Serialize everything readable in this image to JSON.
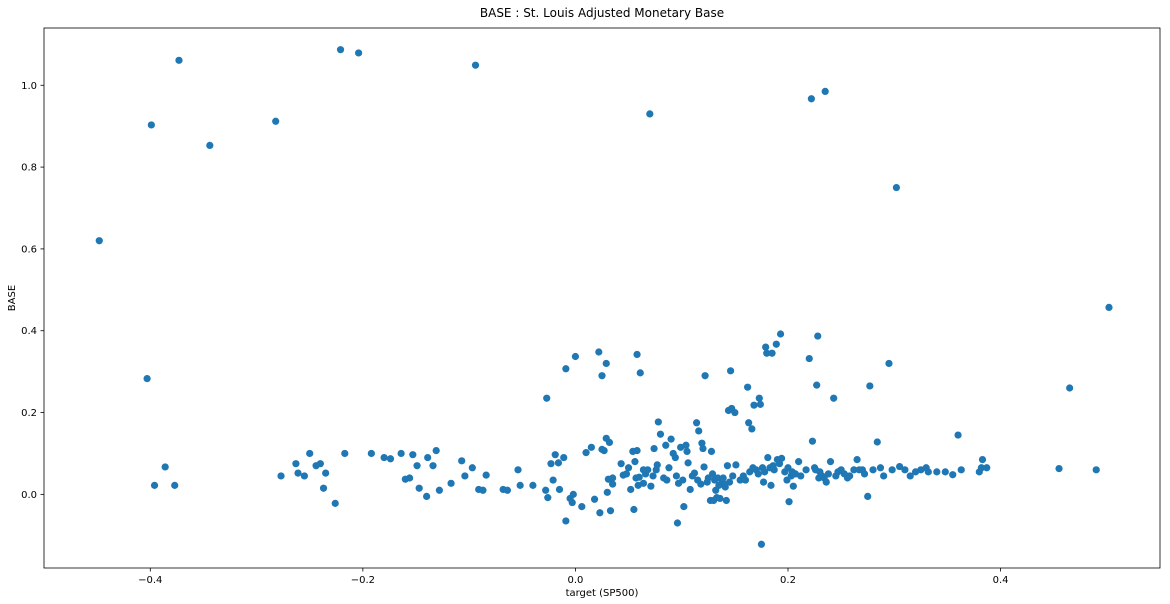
{
  "chart_data": {
    "type": "scatter",
    "title": "BASE :  St. Louis Adjusted Monetary Base",
    "xlabel": "target (SP500)",
    "ylabel": "BASE",
    "xlim": [
      -0.5,
      0.55
    ],
    "ylim": [
      -0.18,
      1.14
    ],
    "xticks": [
      -0.4,
      -0.2,
      0.0,
      0.2,
      0.4
    ],
    "xtick_labels": [
      "−0.4",
      "−0.2",
      "0.0",
      "0.2",
      "0.4"
    ],
    "yticks": [
      0.0,
      0.2,
      0.4,
      0.6,
      0.8,
      1.0
    ],
    "ytick_labels": [
      "0.0",
      "0.2",
      "0.4",
      "0.6",
      "0.8",
      "1.0"
    ],
    "grid": false,
    "marker_color": "#1f77b4",
    "series": [
      {
        "points": [
          [
            -0.448,
            0.62
          ],
          [
            -0.403,
            0.283
          ],
          [
            -0.399,
            0.903
          ],
          [
            -0.396,
            0.022
          ],
          [
            -0.386,
            0.067
          ],
          [
            -0.377,
            0.022
          ],
          [
            -0.373,
            1.061
          ],
          [
            -0.344,
            0.853
          ],
          [
            -0.282,
            0.912
          ],
          [
            -0.277,
            0.045
          ],
          [
            -0.263,
            0.075
          ],
          [
            -0.261,
            0.052
          ],
          [
            -0.255,
            0.045
          ],
          [
            -0.25,
            0.1
          ],
          [
            -0.244,
            0.07
          ],
          [
            -0.24,
            0.075
          ],
          [
            -0.237,
            0.015
          ],
          [
            -0.235,
            0.052
          ],
          [
            -0.226,
            -0.022
          ],
          [
            -0.221,
            1.087
          ],
          [
            -0.217,
            0.1
          ],
          [
            -0.204,
            1.079
          ],
          [
            -0.192,
            0.1
          ],
          [
            -0.18,
            0.09
          ],
          [
            -0.174,
            0.087
          ],
          [
            -0.164,
            0.1
          ],
          [
            -0.16,
            0.037
          ],
          [
            -0.156,
            0.04
          ],
          [
            -0.153,
            0.097
          ],
          [
            -0.149,
            0.07
          ],
          [
            -0.147,
            0.015
          ],
          [
            -0.14,
            -0.005
          ],
          [
            -0.139,
            0.09
          ],
          [
            -0.134,
            0.07
          ],
          [
            -0.131,
            0.107
          ],
          [
            -0.128,
            0.01
          ],
          [
            -0.117,
            0.027
          ],
          [
            -0.107,
            0.082
          ],
          [
            -0.104,
            0.045
          ],
          [
            -0.097,
            0.065
          ],
          [
            -0.094,
            1.049
          ],
          [
            -0.091,
            0.012
          ],
          [
            -0.087,
            0.01
          ],
          [
            -0.084,
            0.047
          ],
          [
            -0.068,
            0.012
          ],
          [
            -0.064,
            0.01
          ],
          [
            -0.054,
            0.06
          ],
          [
            -0.052,
            0.022
          ],
          [
            -0.04,
            0.022
          ],
          [
            -0.027,
            0.235
          ],
          [
            -0.028,
            0.01
          ],
          [
            -0.026,
            -0.008
          ],
          [
            -0.023,
            0.075
          ],
          [
            -0.021,
            0.035
          ],
          [
            -0.019,
            0.097
          ],
          [
            -0.016,
            0.077
          ],
          [
            -0.015,
            0.012
          ],
          [
            -0.011,
            0.09
          ],
          [
            -0.009,
            -0.065
          ],
          [
            -0.009,
            0.307
          ],
          [
            -0.005,
            -0.01
          ],
          [
            -0.003,
            -0.02
          ],
          [
            -0.002,
            0.0
          ],
          [
            0.0,
            0.337
          ],
          [
            0.006,
            -0.03
          ],
          [
            0.01,
            0.102
          ],
          [
            0.015,
            0.115
          ],
          [
            0.018,
            -0.012
          ],
          [
            0.022,
            0.348
          ],
          [
            0.023,
            -0.045
          ],
          [
            0.025,
            0.11
          ],
          [
            0.025,
            0.29
          ],
          [
            0.027,
            0.107
          ],
          [
            0.029,
            0.137
          ],
          [
            0.029,
            0.32
          ],
          [
            0.03,
            0.005
          ],
          [
            0.031,
            0.037
          ],
          [
            0.032,
            0.127
          ],
          [
            0.033,
            -0.04
          ],
          [
            0.035,
            0.04
          ],
          [
            0.035,
            0.025
          ],
          [
            0.043,
            0.075
          ],
          [
            0.045,
            0.047
          ],
          [
            0.048,
            0.05
          ],
          [
            0.05,
            0.065
          ],
          [
            0.052,
            0.012
          ],
          [
            0.054,
            0.105
          ],
          [
            0.055,
            -0.037
          ],
          [
            0.056,
            0.08
          ],
          [
            0.057,
            0.04
          ],
          [
            0.058,
            0.342
          ],
          [
            0.058,
            0.107
          ],
          [
            0.059,
            0.022
          ],
          [
            0.06,
            0.042
          ],
          [
            0.061,
            0.297
          ],
          [
            0.064,
            0.06
          ],
          [
            0.064,
            0.027
          ],
          [
            0.066,
            0.05
          ],
          [
            0.068,
            0.06
          ],
          [
            0.07,
            0.93
          ],
          [
            0.071,
            0.02
          ],
          [
            0.073,
            0.045
          ],
          [
            0.074,
            0.112
          ],
          [
            0.076,
            0.06
          ],
          [
            0.077,
            0.072
          ],
          [
            0.078,
            0.177
          ],
          [
            0.08,
            0.147
          ],
          [
            0.083,
            0.04
          ],
          [
            0.085,
            0.12
          ],
          [
            0.086,
            0.035
          ],
          [
            0.088,
            0.065
          ],
          [
            0.09,
            0.135
          ],
          [
            0.092,
            0.1
          ],
          [
            0.094,
            0.09
          ],
          [
            0.095,
            0.045
          ],
          [
            0.096,
            -0.07
          ],
          [
            0.097,
            0.027
          ],
          [
            0.099,
            0.115
          ],
          [
            0.101,
            0.035
          ],
          [
            0.102,
            -0.03
          ],
          [
            0.104,
            0.12
          ],
          [
            0.105,
            0.105
          ],
          [
            0.106,
            0.077
          ],
          [
            0.108,
            0.012
          ],
          [
            0.11,
            0.045
          ],
          [
            0.112,
            0.052
          ],
          [
            0.114,
            0.175
          ],
          [
            0.115,
            0.035
          ],
          [
            0.116,
            0.155
          ],
          [
            0.118,
            0.025
          ],
          [
            0.119,
            0.125
          ],
          [
            0.12,
            0.112
          ],
          [
            0.121,
            0.067
          ],
          [
            0.122,
            0.29
          ],
          [
            0.124,
            0.03
          ],
          [
            0.125,
            0.04
          ],
          [
            0.127,
            -0.015
          ],
          [
            0.128,
            0.105
          ],
          [
            0.129,
            0.05
          ],
          [
            0.13,
            -0.015
          ],
          [
            0.131,
            0.035
          ],
          [
            0.132,
            0.01
          ],
          [
            0.133,
            -0.008
          ],
          [
            0.134,
            0.04
          ],
          [
            0.135,
            0.022
          ],
          [
            0.136,
            -0.01
          ],
          [
            0.138,
            0.035
          ],
          [
            0.139,
            0.04
          ],
          [
            0.14,
            0.025
          ],
          [
            0.141,
            0.018
          ],
          [
            0.142,
            -0.015
          ],
          [
            0.143,
            0.07
          ],
          [
            0.144,
            0.205
          ],
          [
            0.145,
            0.03
          ],
          [
            0.146,
            0.302
          ],
          [
            0.147,
            0.21
          ],
          [
            0.148,
            0.045
          ],
          [
            0.15,
            0.2
          ],
          [
            0.151,
            0.072
          ],
          [
            0.155,
            0.035
          ],
          [
            0.158,
            0.045
          ],
          [
            0.16,
            0.035
          ],
          [
            0.162,
            0.262
          ],
          [
            0.163,
            0.175
          ],
          [
            0.164,
            0.055
          ],
          [
            0.166,
            0.16
          ],
          [
            0.167,
            0.065
          ],
          [
            0.168,
            0.218
          ],
          [
            0.17,
            0.06
          ],
          [
            0.172,
            0.05
          ],
          [
            0.173,
            0.235
          ],
          [
            0.174,
            0.22
          ],
          [
            0.175,
            -0.122
          ],
          [
            0.176,
            0.065
          ],
          [
            0.177,
            0.03
          ],
          [
            0.178,
            0.055
          ],
          [
            0.179,
            0.36
          ],
          [
            0.18,
            0.345
          ],
          [
            0.181,
            0.09
          ],
          [
            0.183,
            0.065
          ],
          [
            0.184,
            0.022
          ],
          [
            0.185,
            0.345
          ],
          [
            0.186,
            0.07
          ],
          [
            0.187,
            0.06
          ],
          [
            0.189,
            0.367
          ],
          [
            0.19,
            0.085
          ],
          [
            0.192,
            0.075
          ],
          [
            0.193,
            0.392
          ],
          [
            0.194,
            0.088
          ],
          [
            0.197,
            0.055
          ],
          [
            0.199,
            0.035
          ],
          [
            0.2,
            0.065
          ],
          [
            0.201,
            -0.018
          ],
          [
            0.203,
            0.045
          ],
          [
            0.204,
            0.055
          ],
          [
            0.205,
            0.02
          ],
          [
            0.207,
            0.05
          ],
          [
            0.21,
            0.08
          ],
          [
            0.212,
            0.045
          ],
          [
            0.217,
            0.06
          ],
          [
            0.22,
            0.332
          ],
          [
            0.222,
            0.967
          ],
          [
            0.223,
            0.13
          ],
          [
            0.225,
            0.065
          ],
          [
            0.226,
            0.06
          ],
          [
            0.227,
            0.267
          ],
          [
            0.228,
            0.387
          ],
          [
            0.229,
            0.04
          ],
          [
            0.23,
            0.055
          ],
          [
            0.232,
            0.045
          ],
          [
            0.234,
            0.04
          ],
          [
            0.235,
            0.985
          ],
          [
            0.236,
            0.03
          ],
          [
            0.238,
            0.05
          ],
          [
            0.24,
            0.08
          ],
          [
            0.243,
            0.235
          ],
          [
            0.245,
            0.045
          ],
          [
            0.247,
            0.055
          ],
          [
            0.25,
            0.06
          ],
          [
            0.253,
            0.05
          ],
          [
            0.256,
            0.04
          ],
          [
            0.258,
            0.045
          ],
          [
            0.262,
            0.06
          ],
          [
            0.265,
            0.085
          ],
          [
            0.267,
            0.06
          ],
          [
            0.27,
            0.06
          ],
          [
            0.272,
            0.05
          ],
          [
            0.275,
            -0.005
          ],
          [
            0.277,
            0.265
          ],
          [
            0.28,
            0.06
          ],
          [
            0.284,
            0.128
          ],
          [
            0.287,
            0.065
          ],
          [
            0.29,
            0.045
          ],
          [
            0.295,
            0.32
          ],
          [
            0.298,
            0.06
          ],
          [
            0.302,
            0.75
          ],
          [
            0.305,
            0.068
          ],
          [
            0.31,
            0.06
          ],
          [
            0.315,
            0.045
          ],
          [
            0.32,
            0.055
          ],
          [
            0.325,
            0.06
          ],
          [
            0.33,
            0.065
          ],
          [
            0.332,
            0.055
          ],
          [
            0.34,
            0.055
          ],
          [
            0.348,
            0.055
          ],
          [
            0.355,
            0.048
          ],
          [
            0.36,
            0.145
          ],
          [
            0.363,
            0.06
          ],
          [
            0.38,
            0.055
          ],
          [
            0.382,
            0.065
          ],
          [
            0.383,
            0.085
          ],
          [
            0.387,
            0.065
          ],
          [
            0.455,
            0.063
          ],
          [
            0.465,
            0.26
          ],
          [
            0.49,
            0.06
          ],
          [
            0.502,
            0.457
          ]
        ]
      }
    ]
  }
}
